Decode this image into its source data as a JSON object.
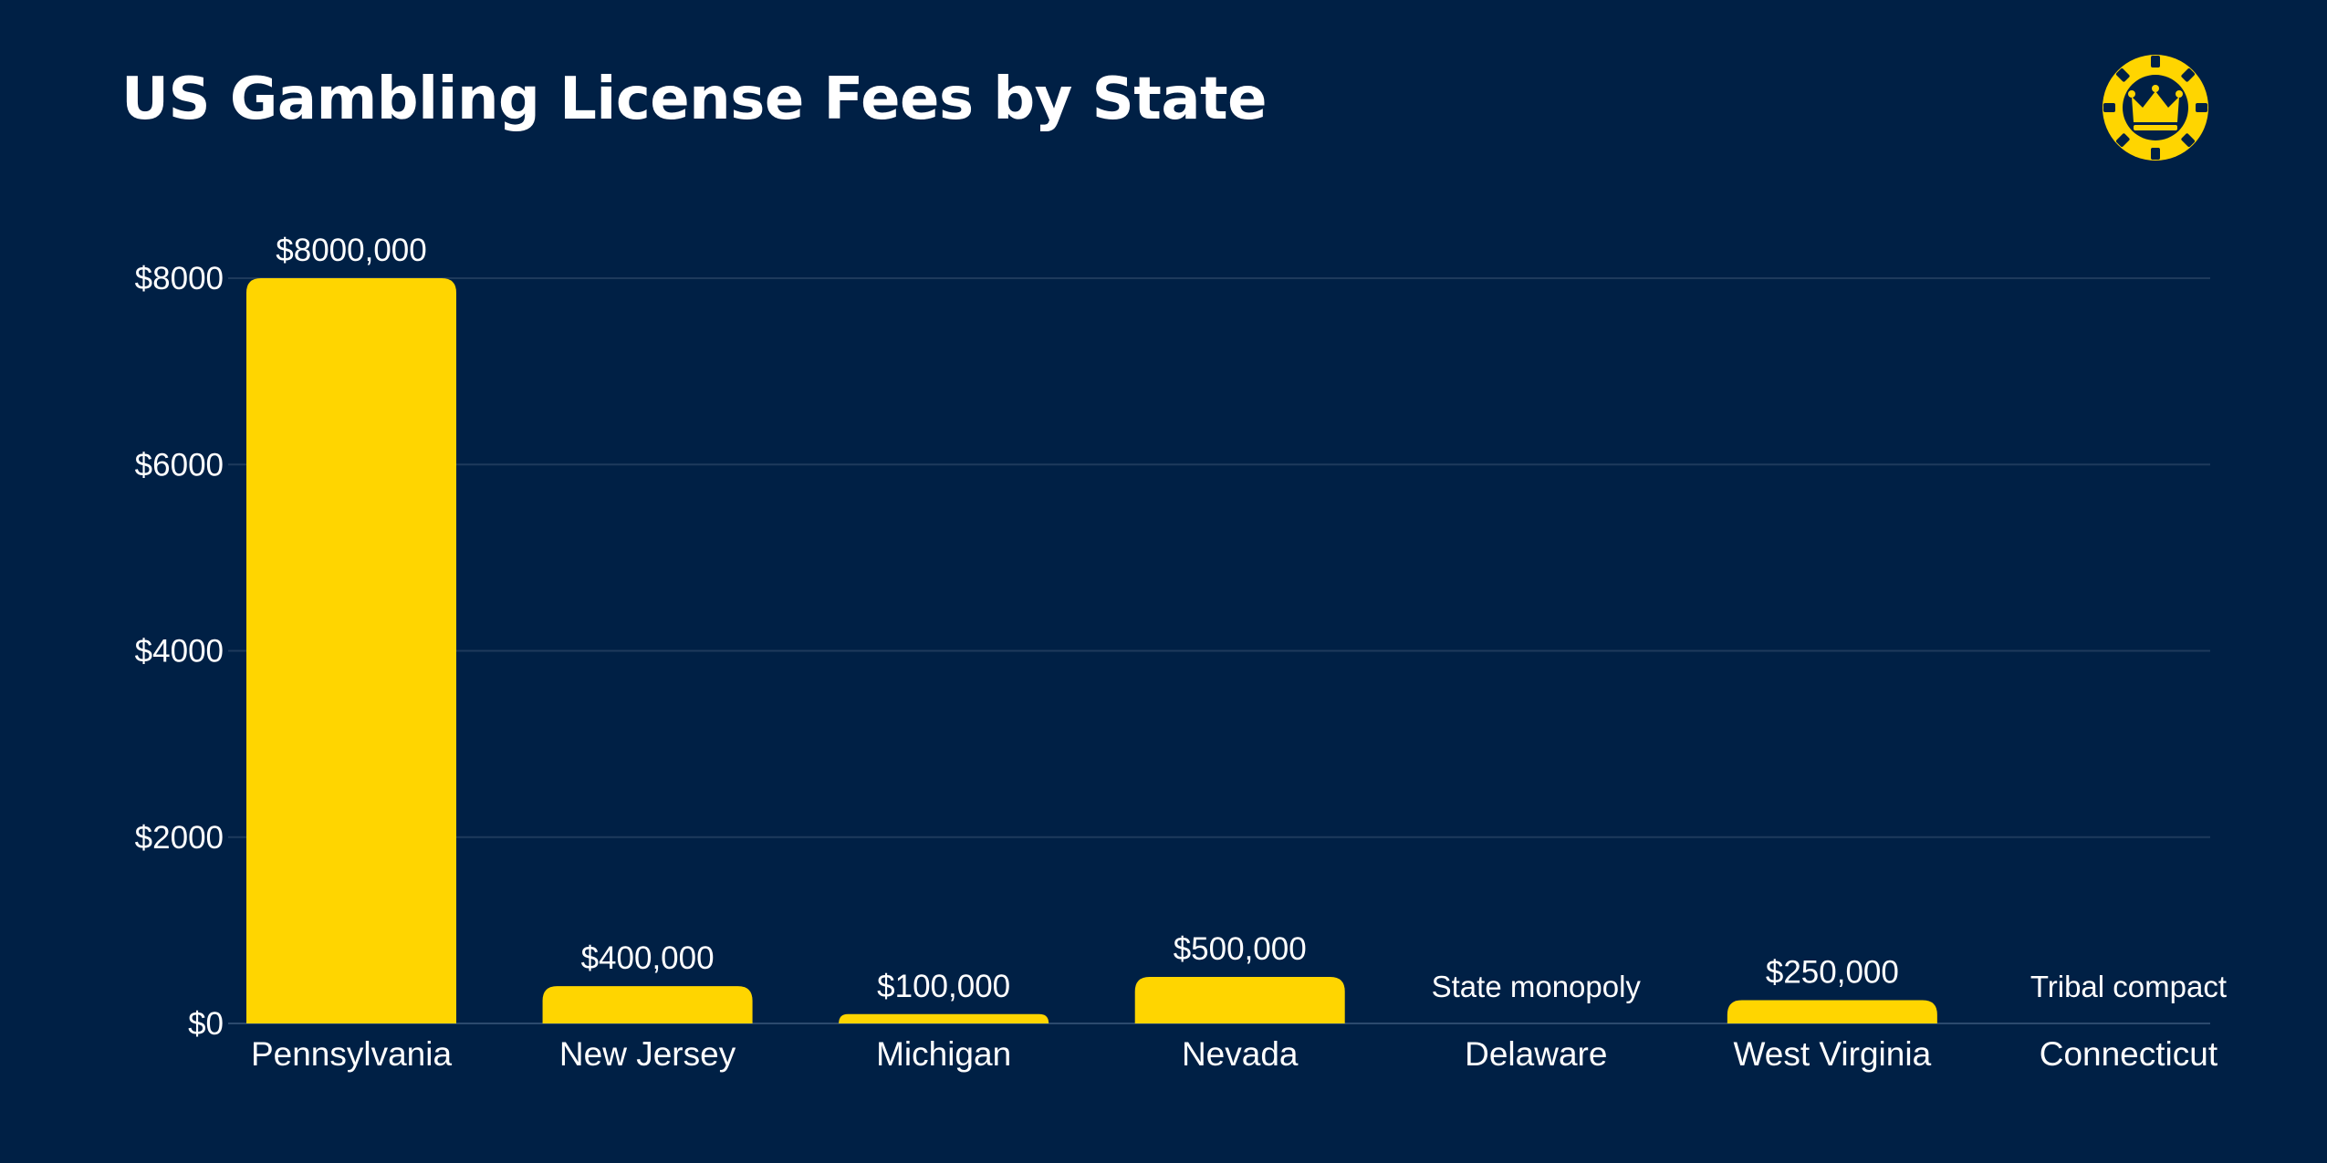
{
  "title": "US Gambling License Fees by State",
  "logo": {
    "icon": "crown-poker-chip-icon",
    "color": "#FFD500"
  },
  "colors": {
    "background": "#002045",
    "bar": "#FFD500",
    "text": "#FFFFFF",
    "grid": "#1E3A5C"
  },
  "chart_data": {
    "type": "bar",
    "title": "US Gambling License Fees by State",
    "xlabel": "",
    "ylabel": "",
    "categories": [
      "Pennsylvania",
      "New Jersey",
      "Michigan",
      "Nevada",
      "Delaware",
      "West Virginia",
      "Connecticut"
    ],
    "values": [
      8000,
      400,
      100,
      500,
      null,
      250,
      null
    ],
    "data_labels": [
      "$8000,000",
      "$400,000",
      "$100,000",
      "$500,000",
      "State monopoly",
      "$250,000",
      "Tribal compact"
    ],
    "ylim": [
      0,
      8000
    ],
    "yticks": [
      0,
      2000,
      4000,
      6000,
      8000
    ],
    "ytick_labels": [
      "$0",
      "$2000",
      "$4000",
      "$6000",
      "$8000"
    ],
    "grid": true,
    "legend": "none"
  }
}
